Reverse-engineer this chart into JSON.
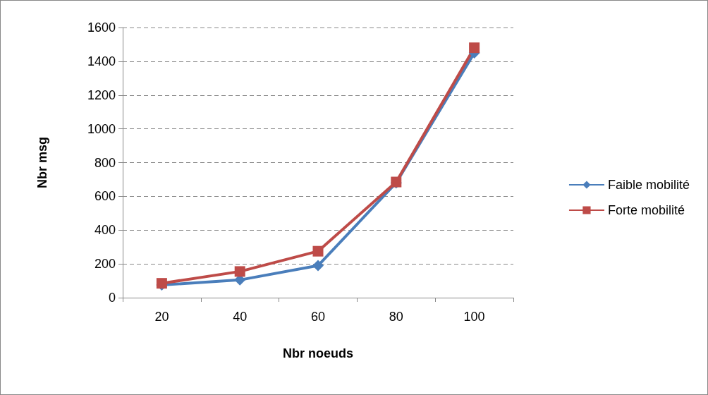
{
  "chart_data": {
    "type": "line",
    "xlabel": "Nbr noeuds",
    "ylabel": "Nbr msg",
    "categories": [
      "20",
      "40",
      "60",
      "80",
      "100"
    ],
    "series": [
      {
        "name": "Faible mobilité",
        "color": "#4a7ebb",
        "marker": "diamond",
        "values": [
          75,
          105,
          190,
          680,
          1450
        ]
      },
      {
        "name": "Forte mobilité",
        "color": "#be4b48",
        "marker": "square",
        "values": [
          85,
          155,
          275,
          685,
          1480
        ]
      }
    ],
    "ylim": [
      0,
      1600
    ],
    "yticks": [
      0,
      200,
      400,
      600,
      800,
      1000,
      1200,
      1400,
      1600
    ],
    "grid": "y",
    "legend": "right"
  }
}
